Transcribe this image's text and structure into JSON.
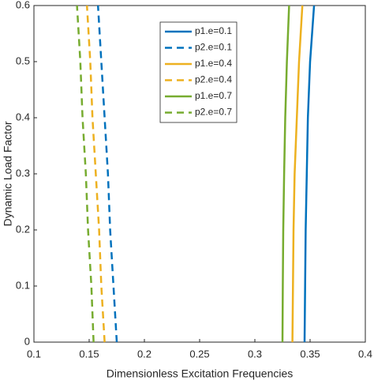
{
  "chart_data": {
    "type": "line",
    "xlabel": "Dimensionless Excitation Frequencies",
    "ylabel": "Dynamic Load Factor",
    "xlim": [
      0.1,
      0.4
    ],
    "xticks": [
      0.1,
      0.15,
      0.2,
      0.25,
      0.3,
      0.35,
      0.4
    ],
    "ylim": [
      0,
      0.6
    ],
    "yticks": [
      0,
      0.1,
      0.2,
      0.3,
      0.4,
      0.5,
      0.6
    ],
    "legend": "top-center",
    "series": [
      {
        "name": "p1.e=0.1",
        "color": "#0072BD",
        "style": "solid",
        "x": [
          0.345,
          0.3455,
          0.346,
          0.347,
          0.348,
          0.35,
          0.3536
        ],
        "values": [
          0,
          0.1,
          0.2,
          0.3,
          0.4,
          0.5,
          0.6
        ]
      },
      {
        "name": "p2.e=0.1",
        "color": "#0072BD",
        "style": "dashed",
        "x": [
          0.175,
          0.172,
          0.169,
          0.167,
          0.164,
          0.161,
          0.158
        ],
        "values": [
          0,
          0.1,
          0.2,
          0.3,
          0.4,
          0.5,
          0.6
        ]
      },
      {
        "name": "p1.e=0.4",
        "color": "#EDB120",
        "style": "solid",
        "x": [
          0.334,
          0.3345,
          0.335,
          0.336,
          0.338,
          0.34,
          0.343
        ],
        "values": [
          0,
          0.1,
          0.2,
          0.3,
          0.4,
          0.5,
          0.6
        ]
      },
      {
        "name": "p2.e=0.4",
        "color": "#EDB120",
        "style": "dashed",
        "x": [
          0.164,
          0.161,
          0.159,
          0.156,
          0.153,
          0.151,
          0.148
        ],
        "values": [
          0,
          0.1,
          0.2,
          0.3,
          0.4,
          0.5,
          0.6
        ]
      },
      {
        "name": "p1.e=0.7",
        "color": "#77AC30",
        "style": "solid",
        "x": [
          0.325,
          0.3253,
          0.3257,
          0.3265,
          0.3275,
          0.329,
          0.331
        ],
        "values": [
          0,
          0.1,
          0.2,
          0.3,
          0.4,
          0.5,
          0.6
        ]
      },
      {
        "name": "p2.e=0.7",
        "color": "#77AC30",
        "style": "dashed",
        "x": [
          0.154,
          0.152,
          0.149,
          0.147,
          0.144,
          0.142,
          0.139
        ],
        "values": [
          0,
          0.1,
          0.2,
          0.3,
          0.4,
          0.5,
          0.6
        ]
      }
    ]
  }
}
